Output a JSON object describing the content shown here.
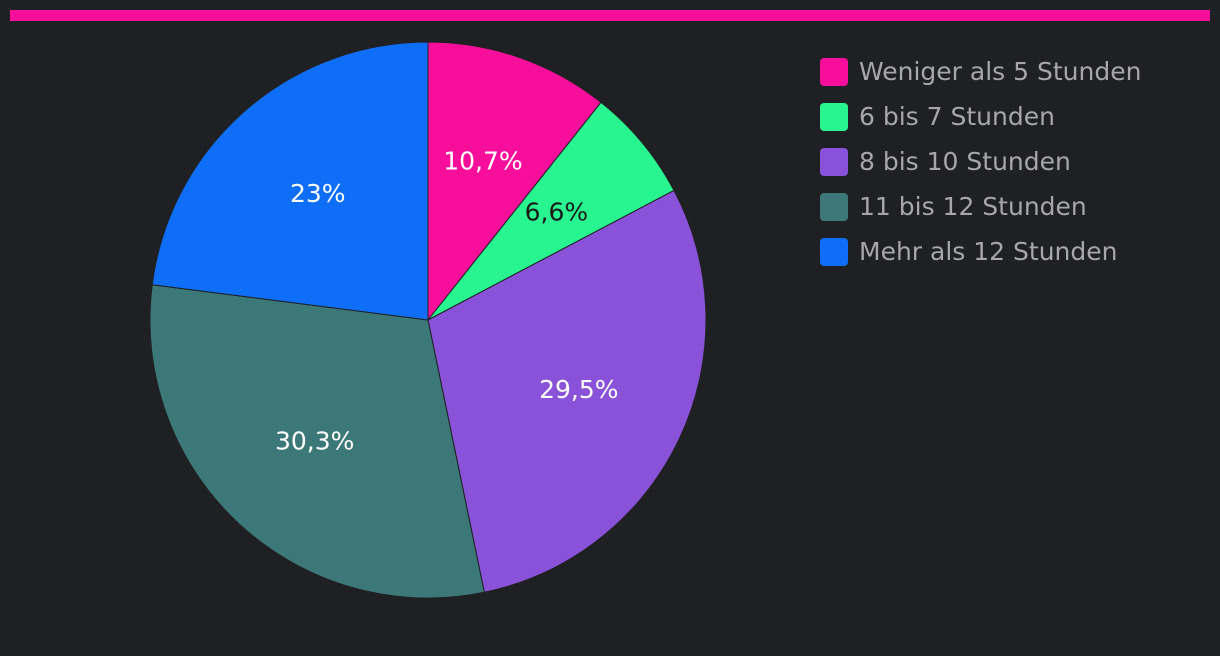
{
  "chart_data": {
    "type": "pie",
    "title": "",
    "categories": [
      "Weniger als 5 Stunden",
      "6 bis 7 Stunden",
      "8 bis 10 Stunden",
      "11 bis 12 Stunden",
      "Mehr als 12 Stunden"
    ],
    "values": [
      10.7,
      6.6,
      29.5,
      30.3,
      23
    ],
    "data_labels": [
      "10,7%",
      "6,6%",
      "29,5%",
      "30,3%",
      "23%"
    ],
    "colors": [
      "#f70f9b",
      "#28f590",
      "#8952d8",
      "#3d7878",
      "#0f6ef7"
    ],
    "label_colors": [
      "#ffffff",
      "#1a1a1a",
      "#ffffff",
      "#ffffff",
      "#ffffff"
    ],
    "legend_position": "right"
  },
  "theme": {
    "background": "#1f2023",
    "accent_bar": "#f70f9b",
    "legend_text": "#a7a7a9"
  }
}
